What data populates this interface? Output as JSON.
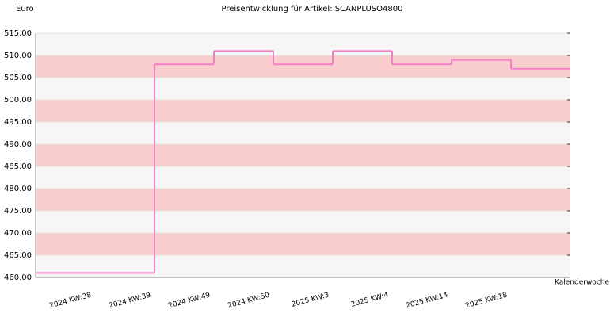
{
  "chart_data": {
    "type": "step",
    "title": "Preisentwicklung für Artikel: SCANPLUSO4800",
    "y_label": "Euro",
    "x_label": "Kalenderwoche",
    "categories": [
      "2024 KW:38",
      "2024 KW:39",
      "2024 KW:49",
      "2024 KW:50",
      "2025 KW:3",
      "2025 KW:4",
      "2025 KW:14",
      "2025 KW:18"
    ],
    "values": [
      461,
      508,
      511,
      508,
      511,
      508,
      509,
      507
    ],
    "color": "#f27ec6",
    "band_colors": [
      "#f6f6f6",
      "#f9cdcd"
    ],
    "ylim": [
      460,
      515
    ],
    "yticks": [
      {
        "value": 460,
        "label": "460.00"
      },
      {
        "value": 465,
        "label": "465.00"
      },
      {
        "value": 470,
        "label": "470.00"
      },
      {
        "value": 475,
        "label": "475.00"
      },
      {
        "value": 480,
        "label": "480.00"
      },
      {
        "value": 485,
        "label": "485.00"
      },
      {
        "value": 490,
        "label": "490.00"
      },
      {
        "value": 495,
        "label": "495.00"
      },
      {
        "value": 500,
        "label": "500.00"
      },
      {
        "value": 505,
        "label": "505.00"
      },
      {
        "value": 510,
        "label": "510.00"
      },
      {
        "value": 515,
        "label": "515.00"
      }
    ]
  }
}
